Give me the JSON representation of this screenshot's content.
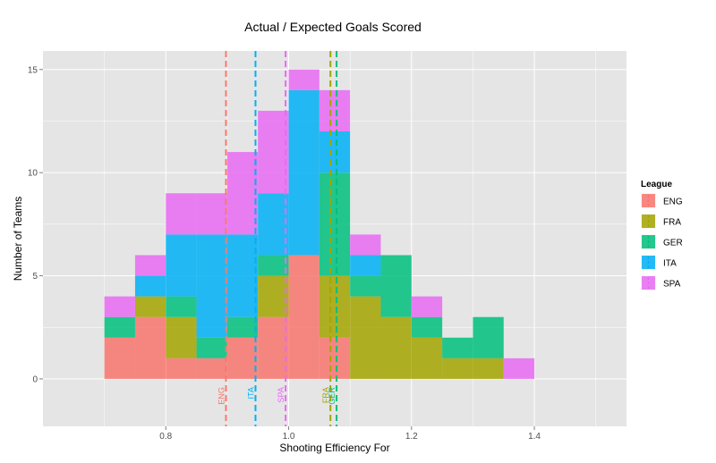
{
  "chart_data": {
    "type": "histogram",
    "stacked": true,
    "title": "Actual / Expected Goals Scored",
    "xlabel": "Shooting Efficiency For",
    "ylabel": "Number of Teams",
    "xlim": [
      0.6,
      1.55
    ],
    "ylim": [
      -2.3,
      15.9
    ],
    "x_ticks": [
      0.8,
      1.0,
      1.2,
      1.4
    ],
    "x_tick_labels": [
      "0.8",
      "1.0",
      "1.2",
      "1.4"
    ],
    "y_ticks": [
      0,
      5,
      10,
      15
    ],
    "y_tick_labels": [
      "0",
      "5",
      "10",
      "15"
    ],
    "grid": true,
    "bin_width": 0.05,
    "bins": [
      0.7,
      0.75,
      0.8,
      0.85,
      0.9,
      0.95,
      1.0,
      1.05,
      1.1,
      1.15,
      1.2,
      1.25,
      1.3,
      1.35,
      1.4
    ],
    "series": [
      {
        "name": "ENG",
        "color": "#F8766D",
        "values": [
          2,
          3,
          1,
          1,
          2,
          3,
          6,
          2,
          0,
          0,
          0,
          0,
          0,
          0,
          0
        ]
      },
      {
        "name": "FRA",
        "color": "#A3A500",
        "values": [
          0,
          1,
          2,
          0,
          0,
          2,
          0,
          3,
          4,
          3,
          2,
          1,
          1,
          0,
          0
        ]
      },
      {
        "name": "GER",
        "color": "#00BF7D",
        "values": [
          1,
          0,
          1,
          1,
          1,
          1,
          0,
          5,
          1,
          3,
          1,
          1,
          2,
          0,
          0
        ]
      },
      {
        "name": "ITA",
        "color": "#00B0F6",
        "values": [
          0,
          1,
          3,
          5,
          4,
          3,
          8,
          2,
          1,
          0,
          0,
          0,
          0,
          0,
          0
        ]
      },
      {
        "name": "SPA",
        "color": "#E76BF3",
        "values": [
          1,
          1,
          2,
          2,
          4,
          4,
          1,
          2,
          1,
          0,
          1,
          0,
          0,
          1,
          0
        ]
      }
    ],
    "means": [
      {
        "name": "ENG",
        "x": 0.898,
        "label": "ENG"
      },
      {
        "name": "ITA",
        "x": 0.946,
        "label": "ITA"
      },
      {
        "name": "SPA",
        "x": 0.995,
        "label": "SPA"
      },
      {
        "name": "FRA",
        "x": 1.068,
        "label": "FRA"
      },
      {
        "name": "GER",
        "x": 1.078,
        "label": "GER"
      }
    ],
    "legend": {
      "title": "League",
      "position": "right",
      "entries": [
        "ENG",
        "FRA",
        "GER",
        "ITA",
        "SPA"
      ]
    }
  }
}
